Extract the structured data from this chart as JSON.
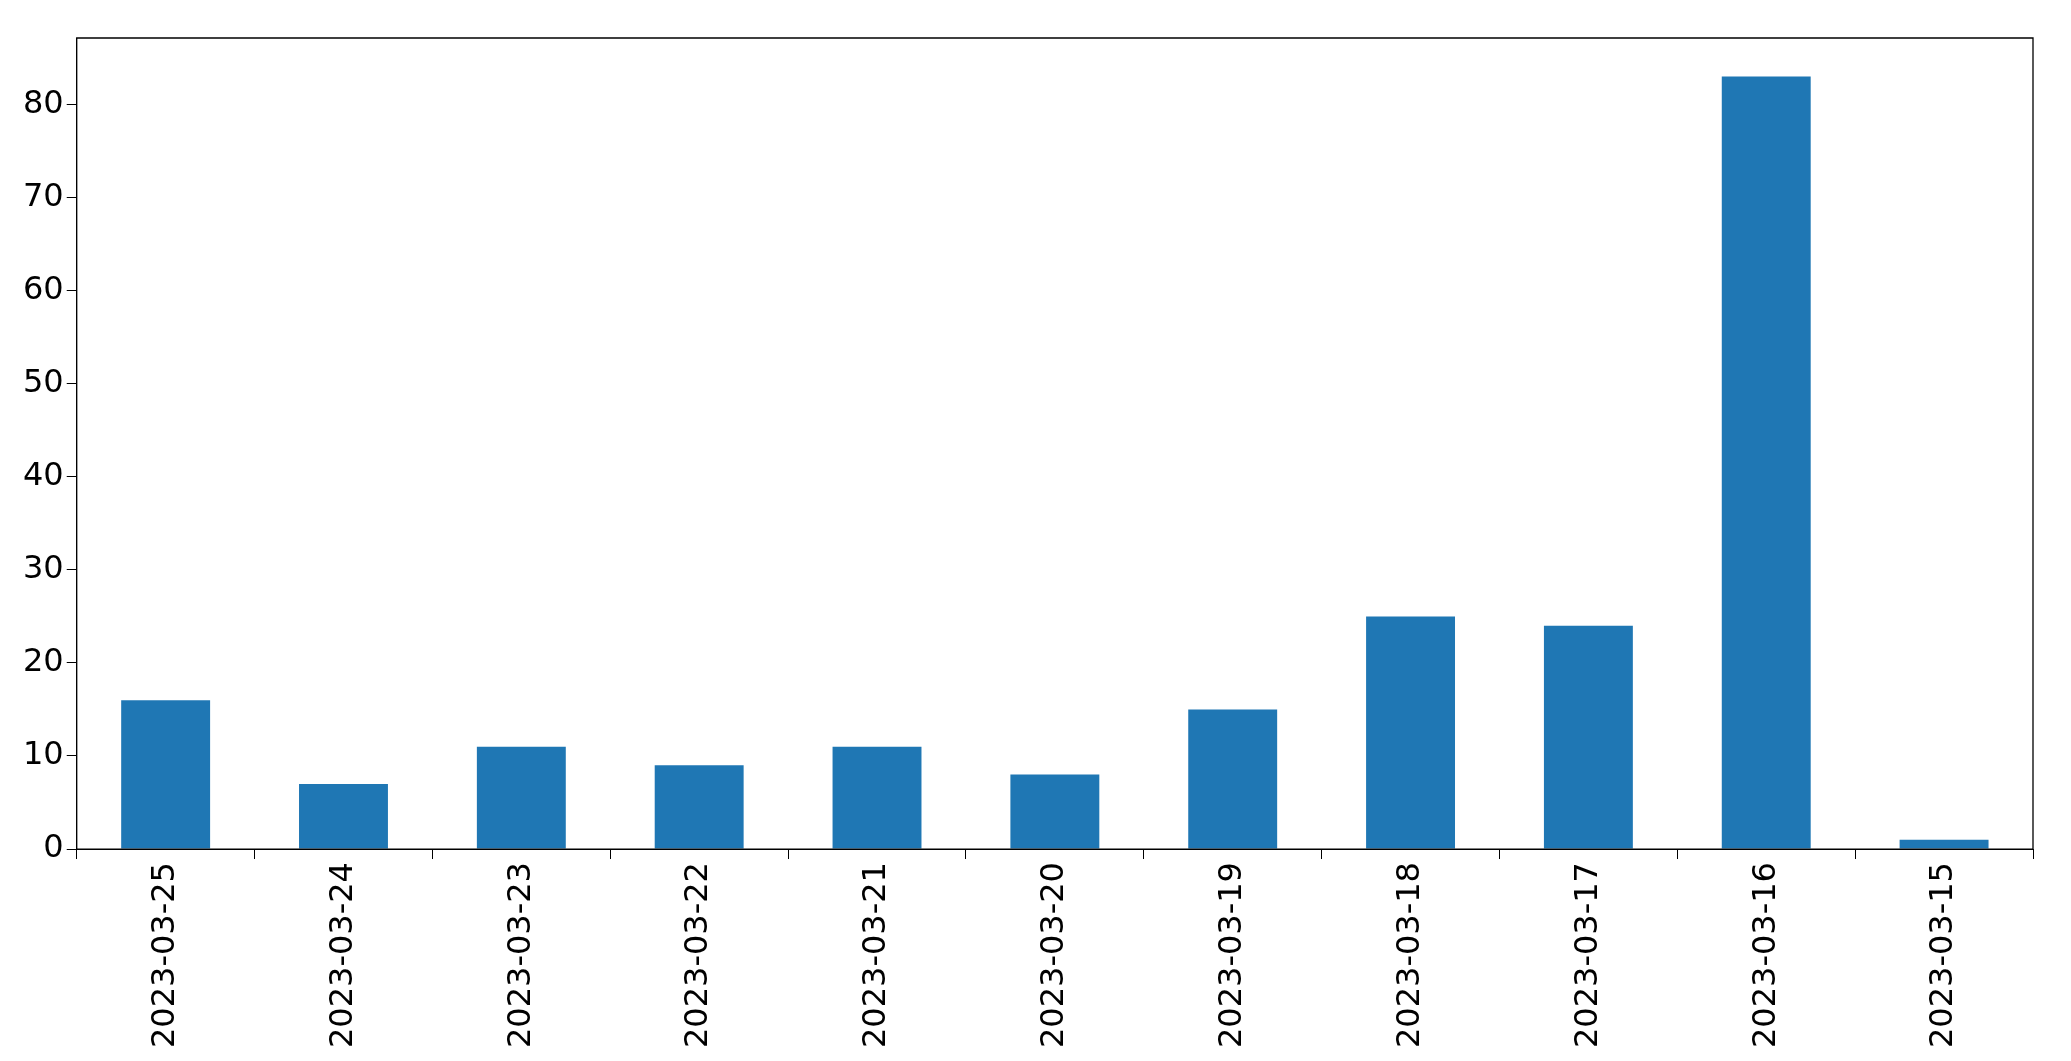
{
  "chart_data": {
    "type": "bar",
    "categories": [
      "2023-03-25",
      "2023-03-24",
      "2023-03-23",
      "2023-03-22",
      "2023-03-21",
      "2023-03-20",
      "2023-03-19",
      "2023-03-18",
      "2023-03-17",
      "2023-03-16",
      "2023-03-15"
    ],
    "values": [
      16,
      7,
      11,
      9,
      11,
      8,
      15,
      25,
      24,
      83,
      1
    ],
    "color": "#1f77b4",
    "ylim": [
      0,
      87.15
    ],
    "yticks": [
      0,
      10,
      20,
      30,
      40,
      50,
      60,
      70,
      80
    ],
    "grid": false,
    "legend": false
  }
}
